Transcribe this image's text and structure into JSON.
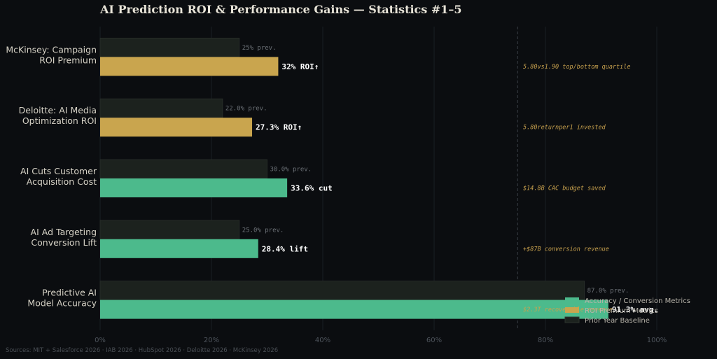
{
  "chart_data": {
    "type": "bar",
    "orientation": "horizontal",
    "title": "AI Prediction ROI & Performance Gains — Statistics #1–5",
    "categories": [
      "McKinsey: Campaign\nROI Premium",
      "Deloitte: AI Media\nOptimization ROI",
      "AI Cuts Customer\nAcquisition Cost",
      "AI Ad Targeting\nConversion Lift",
      "Predictive AI\nModel Accuracy"
    ],
    "series": [
      {
        "name": "Prior Year Baseline",
        "values": [
          25,
          22.0,
          30.0,
          25.0,
          87.0
        ],
        "labels": [
          "25%  prev.",
          "22.0%  prev.",
          "30.0%  prev.",
          "25.0%  prev.",
          "87.0%  prev."
        ]
      },
      {
        "name": "Accuracy / Conversion Metrics",
        "values": [
          32,
          27.3,
          33.6,
          28.4,
          91.3
        ],
        "labels": [
          "32% ROI↑",
          "27.3% ROI↑",
          "33.6% cut",
          "28.4% lift",
          "91.3% avg."
        ],
        "group": [
          "roi",
          "roi",
          "acc",
          "acc",
          "acc"
        ]
      }
    ],
    "annotations": [
      "5.80vs1.90 top/bottom quartile",
      "5.80returnper1 invested",
      "$14.8B CAC budget saved",
      "+$87B conversion revenue",
      "$2.3T recoverable revenue"
    ],
    "reference_line": 75,
    "xlim": [
      0,
      100
    ],
    "x_ticks": [
      "0%",
      "20%",
      "40%",
      "60%",
      "80%",
      "100%"
    ],
    "grid": true,
    "legend": {
      "placement": "bottom-right",
      "entries": [
        {
          "label": "Accuracy / Conversion Metrics",
          "color": "#4cba8c"
        },
        {
          "label": "ROI Premium Metrics",
          "color": "#c9a54e"
        },
        {
          "label": "Prior Year Baseline",
          "color": "#1c221e"
        }
      ]
    },
    "colors": {
      "roi": "#c9a54e",
      "acc": "#4cba8c",
      "baseline": "#1c221e",
      "grid": "#1a1e23",
      "note": "#c9a24e"
    }
  },
  "footer": {
    "sources": "Sources: MIT + Salesforce 2026 · IAB 2026 · HubSpot 2026 · Deloitte 2026 · McKinsey 2026"
  }
}
